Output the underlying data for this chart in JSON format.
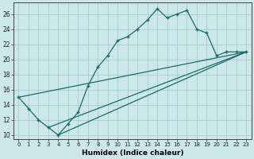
{
  "xlabel": "Humidex (Indice chaleur)",
  "xlim": [
    -0.5,
    23.5
  ],
  "ylim": [
    9.5,
    27.5
  ],
  "xticks": [
    0,
    1,
    2,
    3,
    4,
    5,
    6,
    7,
    8,
    9,
    10,
    11,
    12,
    13,
    14,
    15,
    16,
    17,
    18,
    19,
    20,
    21,
    22,
    23
  ],
  "yticks": [
    10,
    12,
    14,
    16,
    18,
    20,
    22,
    24,
    26
  ],
  "bg_color": "#cce8e8",
  "line_color": "#1a6b6b",
  "grid_color": "#aacccc",
  "curve_x": [
    0,
    1,
    2,
    3,
    4,
    5,
    6,
    7,
    8,
    9,
    10,
    11,
    12,
    13,
    14,
    15,
    16,
    17,
    18,
    19,
    20,
    21,
    22,
    23
  ],
  "curve_y": [
    15,
    13.5,
    12,
    11,
    10,
    11.5,
    13,
    16.5,
    19,
    20.5,
    22.5,
    23,
    24,
    25.2,
    26.7,
    25.5,
    26.0,
    26.5,
    24.0,
    23.5,
    20.5,
    21.0,
    21.0,
    21.0
  ],
  "line1_x": [
    0,
    23
  ],
  "line1_y": [
    15.0,
    21.0
  ],
  "line2_x": [
    3,
    23
  ],
  "line2_y": [
    11.0,
    21.0
  ],
  "line3_x": [
    4,
    23
  ],
  "line3_y": [
    10.0,
    21.0
  ]
}
